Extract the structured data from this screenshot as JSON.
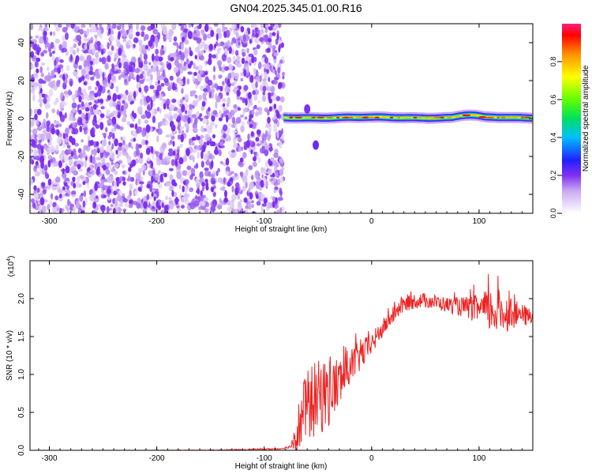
{
  "title": "GN04.2025.345.01.00.R16",
  "colors": {
    "snr_line": "#ee2222",
    "background": "#ffffff",
    "axis": "#000000",
    "noise": "#7a2cf0"
  },
  "chart_data": [
    {
      "type": "heatmap",
      "xlabel": "Height of straight line (km)",
      "ylabel": "Frequency (Hz)",
      "xlim": [
        -318,
        150
      ],
      "ylim": [
        -50,
        50
      ],
      "xticks": [
        -300,
        -200,
        -100,
        0,
        100
      ],
      "yticks": [
        -40,
        -20,
        0,
        20,
        40
      ],
      "regions": [
        {
          "name": "noise",
          "x_range": [
            -318,
            -82
          ],
          "freq_range": [
            -50,
            50
          ],
          "amplitude_range": [
            0.0,
            0.25
          ]
        },
        {
          "name": "main-tone",
          "x_range": [
            -82,
            150
          ],
          "freq_center": 0.5,
          "bandwidth_hz": 4,
          "amplitude_range": [
            0.2,
            1.0
          ]
        },
        {
          "name": "side-blob-1",
          "x": -60,
          "freq": 5,
          "amplitude": 0.2
        },
        {
          "name": "side-blob-2",
          "x": -52,
          "freq": -14,
          "amplitude": 0.22
        }
      ],
      "colorbar": {
        "label": "Normalized spectral amplitude",
        "range": [
          0,
          1
        ],
        "ticks": [
          "0.0",
          "0.2",
          "0.4",
          "0.6",
          "0.8"
        ]
      }
    },
    {
      "type": "line",
      "xlabel": "Height of straight line (km)",
      "ylabel": "SNR (10 * v/v)",
      "y_multiplier": "(x10",
      "y_multiplier_exp": "4",
      "xlim": [
        -318,
        150
      ],
      "ylim": [
        0,
        2.5
      ],
      "xticks": [
        -300,
        -200,
        -100,
        0,
        100
      ],
      "yticks": [
        "0.0",
        "0.5",
        "1.0",
        "1.5",
        "2.0"
      ],
      "series": [
        {
          "name": "SNR",
          "x": [
            -318,
            -250,
            -150,
            -85,
            -75,
            -68,
            -62,
            -55,
            -48,
            -40,
            -30,
            -20,
            -10,
            0,
            10,
            20,
            30,
            40,
            50,
            60,
            70,
            80,
            90,
            100,
            110,
            120,
            130,
            140,
            150
          ],
          "y": [
            0.0,
            0.0,
            0.0,
            0.02,
            0.05,
            0.3,
            0.55,
            0.65,
            0.7,
            0.75,
            0.9,
            1.1,
            1.25,
            1.4,
            1.6,
            1.78,
            1.92,
            1.97,
            1.98,
            1.95,
            1.92,
            1.9,
            1.88,
            1.86,
            1.84,
            1.82,
            1.8,
            1.78,
            1.75
          ],
          "noise_amplitude": [
            0,
            0,
            0.005,
            0.01,
            0.02,
            0.35,
            0.45,
            0.5,
            0.5,
            0.45,
            0.35,
            0.25,
            0.2,
            0.15,
            0.12,
            0.1,
            0.1,
            0.1,
            0.1,
            0.1,
            0.1,
            0.12,
            0.15,
            0.2,
            0.3,
            0.3,
            0.2,
            0.15,
            0.1
          ]
        }
      ]
    }
  ]
}
